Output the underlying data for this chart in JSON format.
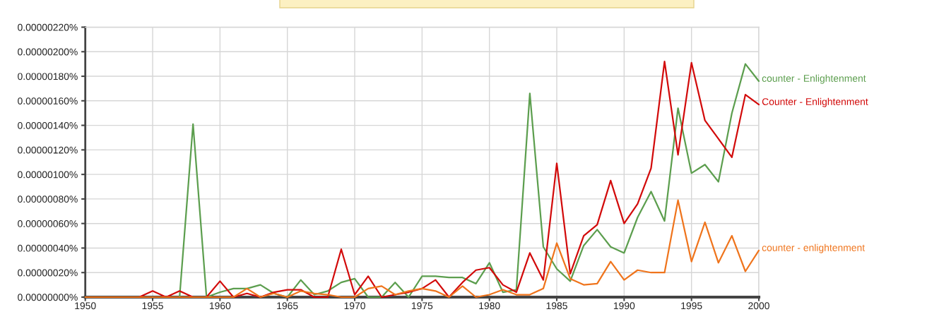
{
  "chart_data": {
    "type": "line",
    "x": [
      1950,
      1951,
      1952,
      1953,
      1954,
      1955,
      1956,
      1957,
      1958,
      1959,
      1960,
      1961,
      1962,
      1963,
      1964,
      1965,
      1966,
      1967,
      1968,
      1969,
      1970,
      1971,
      1972,
      1973,
      1974,
      1975,
      1976,
      1977,
      1978,
      1979,
      1980,
      1981,
      1982,
      1983,
      1984,
      1985,
      1986,
      1987,
      1988,
      1989,
      1990,
      1991,
      1992,
      1993,
      1994,
      1995,
      1996,
      1997,
      1998,
      1999,
      2000
    ],
    "series": [
      {
        "name": "counter - Enlightenment",
        "color": "#5c9e4e",
        "values": [
          0,
          0,
          0,
          0,
          0,
          0,
          0,
          0,
          1.41e-06,
          0,
          4e-08,
          7e-08,
          7e-08,
          1e-07,
          3e-08,
          0,
          1.4e-07,
          2e-08,
          5e-08,
          1.2e-07,
          1.5e-07,
          0,
          0,
          1.2e-07,
          0,
          1.7e-07,
          1.7e-07,
          1.6e-07,
          1.6e-07,
          1.1e-07,
          2.8e-07,
          4e-08,
          6e-08,
          1.66e-06,
          4.1e-07,
          2.3e-07,
          1.3e-07,
          4.2e-07,
          5.5e-07,
          4.1e-07,
          3.6e-07,
          6.5e-07,
          8.6e-07,
          6.2e-07,
          1.54e-06,
          1.01e-06,
          1.08e-06,
          9.4e-07,
          1.5e-06,
          1.9e-06,
          1.76e-06
        ]
      },
      {
        "name": "Counter - Enlightenment",
        "color": "#d20a0a",
        "values": [
          null,
          null,
          null,
          0,
          0,
          5e-08,
          0,
          5e-08,
          0,
          0,
          1.3e-07,
          0,
          3e-08,
          0,
          4e-08,
          6e-08,
          6e-08,
          0,
          0,
          3.9e-07,
          2e-08,
          1.7e-07,
          0,
          2e-08,
          4e-08,
          7e-08,
          1.4e-07,
          0,
          1.2e-07,
          2.2e-07,
          2.4e-07,
          1e-07,
          4e-08,
          3.6e-07,
          1.4e-07,
          1.09e-06,
          1.9e-07,
          5e-07,
          5.9e-07,
          9.5e-07,
          6e-07,
          7.6e-07,
          1.05e-06,
          1.92e-06,
          1.16e-06,
          1.91e-06,
          1.44e-06,
          1.29e-06,
          1.14e-06,
          1.65e-06,
          1.57e-06
        ]
      },
      {
        "name": "counter - enlightenment",
        "color": "#ef741c",
        "values": [
          0,
          0,
          0,
          0,
          0,
          0,
          0,
          0,
          0,
          0,
          0,
          0,
          7e-08,
          0,
          3e-08,
          0,
          5e-08,
          3e-08,
          2e-08,
          0,
          0,
          7e-08,
          9e-08,
          2e-08,
          5e-08,
          7e-08,
          5e-08,
          0,
          9e-08,
          0,
          2e-08,
          6e-08,
          2e-08,
          2e-08,
          7e-08,
          4.4e-07,
          1.5e-07,
          1e-07,
          1.1e-07,
          2.9e-07,
          1.4e-07,
          2.2e-07,
          2e-07,
          2e-07,
          7.9e-07,
          2.9e-07,
          6.1e-07,
          2.8e-07,
          5e-07,
          2.1e-07,
          3.8e-07
        ]
      }
    ],
    "xlim": [
      1950,
      2000
    ],
    "xticks": [
      1950,
      1955,
      1960,
      1965,
      1970,
      1975,
      1980,
      1985,
      1990,
      1995,
      2000
    ],
    "ylim": [
      0,
      2.2e-06
    ],
    "yticks": [
      {
        "value": 0,
        "label": "0.00000000%"
      },
      {
        "value": 2e-07,
        "label": "0.00000020%"
      },
      {
        "value": 4e-07,
        "label": "0.00000040%"
      },
      {
        "value": 6e-07,
        "label": "0.00000060%"
      },
      {
        "value": 8e-07,
        "label": "0.00000080%"
      },
      {
        "value": 1e-06,
        "label": "0.00000100%"
      },
      {
        "value": 1.2e-06,
        "label": "0.00000120%"
      },
      {
        "value": 1.4e-06,
        "label": "0.00000140%"
      },
      {
        "value": 1.6e-06,
        "label": "0.00000160%"
      },
      {
        "value": 1.8e-06,
        "label": "0.00000180%"
      },
      {
        "value": 2e-06,
        "label": "0.00000200%"
      },
      {
        "value": 2.2e-06,
        "label": "0.00000220%"
      }
    ],
    "grid": true,
    "line_style": "solid"
  }
}
